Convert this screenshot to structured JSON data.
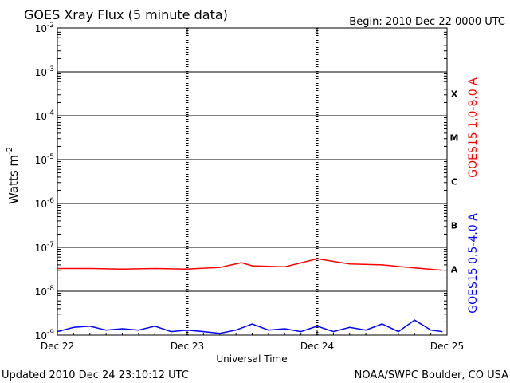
{
  "header": {
    "title": "GOES Xray Flux (5 minute data)",
    "begin_label": "Begin:  2010 Dec 22 0000 UTC"
  },
  "footer": {
    "updated": "Updated 2010 Dec 24 23:10:12 UTC",
    "credit": "NOAA/SWPC Boulder, CO USA"
  },
  "chart_data": {
    "type": "line",
    "title": "GOES Xray Flux (5 minute data)",
    "xlabel": "Universal Time",
    "ylabel": "Watts m",
    "ylabel_sup": "-2",
    "y_scale": "log",
    "ylim": [
      1e-09,
      0.01
    ],
    "y_ticks": [
      {
        "value": 0.01,
        "base": "10",
        "exp": "-2"
      },
      {
        "value": 0.001,
        "base": "10",
        "exp": "-3"
      },
      {
        "value": 0.0001,
        "base": "10",
        "exp": "-4"
      },
      {
        "value": 1e-05,
        "base": "10",
        "exp": "-5"
      },
      {
        "value": 1e-06,
        "base": "10",
        "exp": "-6"
      },
      {
        "value": 1e-07,
        "base": "10",
        "exp": "-7"
      },
      {
        "value": 1e-08,
        "base": "10",
        "exp": "-8"
      },
      {
        "value": 1e-09,
        "base": "10",
        "exp": "-9"
      }
    ],
    "x_ticks": [
      "Dec 22",
      "Dec 23",
      "Dec 24",
      "Dec 25"
    ],
    "x_range_days": [
      "2010-12-22",
      "2010-12-25"
    ],
    "flare_classes": [
      {
        "label": "X",
        "value": 0.000316
      },
      {
        "label": "M",
        "value": 3.16e-05
      },
      {
        "label": "C",
        "value": 3.16e-06
      },
      {
        "label": "B",
        "value": 3.16e-07
      },
      {
        "label": "A",
        "value": 3.16e-08
      }
    ],
    "grid": true,
    "series": [
      {
        "name": "GOES15 1.0-8.0 A",
        "color": "#ff0000",
        "x": [
          "2010-12-22 00:00",
          "2010-12-22 06:00",
          "2010-12-22 12:00",
          "2010-12-22 18:00",
          "2010-12-23 00:00",
          "2010-12-23 06:00",
          "2010-12-23 10:00",
          "2010-12-23 12:00",
          "2010-12-23 18:00",
          "2010-12-24 00:00",
          "2010-12-24 06:00",
          "2010-12-24 12:00",
          "2010-12-24 18:00",
          "2010-12-24 23:10"
        ],
        "values": [
          3.3e-08,
          3.3e-08,
          3.2e-08,
          3.3e-08,
          3.2e-08,
          3.5e-08,
          4.5e-08,
          3.8e-08,
          3.6e-08,
          5.5e-08,
          4.2e-08,
          4e-08,
          3.4e-08,
          3e-08
        ]
      },
      {
        "name": "GOES15 0.5-4.0 A",
        "color": "#0000ff",
        "x": [
          "2010-12-22 00:00",
          "2010-12-22 03:00",
          "2010-12-22 06:00",
          "2010-12-22 09:00",
          "2010-12-22 12:00",
          "2010-12-22 15:00",
          "2010-12-22 18:00",
          "2010-12-22 21:00",
          "2010-12-23 00:00",
          "2010-12-23 03:00",
          "2010-12-23 06:00",
          "2010-12-23 09:00",
          "2010-12-23 12:00",
          "2010-12-23 15:00",
          "2010-12-23 18:00",
          "2010-12-23 21:00",
          "2010-12-24 00:00",
          "2010-12-24 03:00",
          "2010-12-24 06:00",
          "2010-12-24 09:00",
          "2010-12-24 12:00",
          "2010-12-24 15:00",
          "2010-12-24 18:00",
          "2010-12-24 21:00",
          "2010-12-24 23:10"
        ],
        "values": [
          1.2e-09,
          1.5e-09,
          1.6e-09,
          1.3e-09,
          1.4e-09,
          1.3e-09,
          1.6e-09,
          1.2e-09,
          1.3e-09,
          1.2e-09,
          1.1e-09,
          1.3e-09,
          1.8e-09,
          1.3e-09,
          1.4e-09,
          1.2e-09,
          1.6e-09,
          1.2e-09,
          1.5e-09,
          1.3e-09,
          1.8e-09,
          1.2e-09,
          2.2e-09,
          1.3e-09,
          1.2e-09
        ]
      }
    ]
  }
}
